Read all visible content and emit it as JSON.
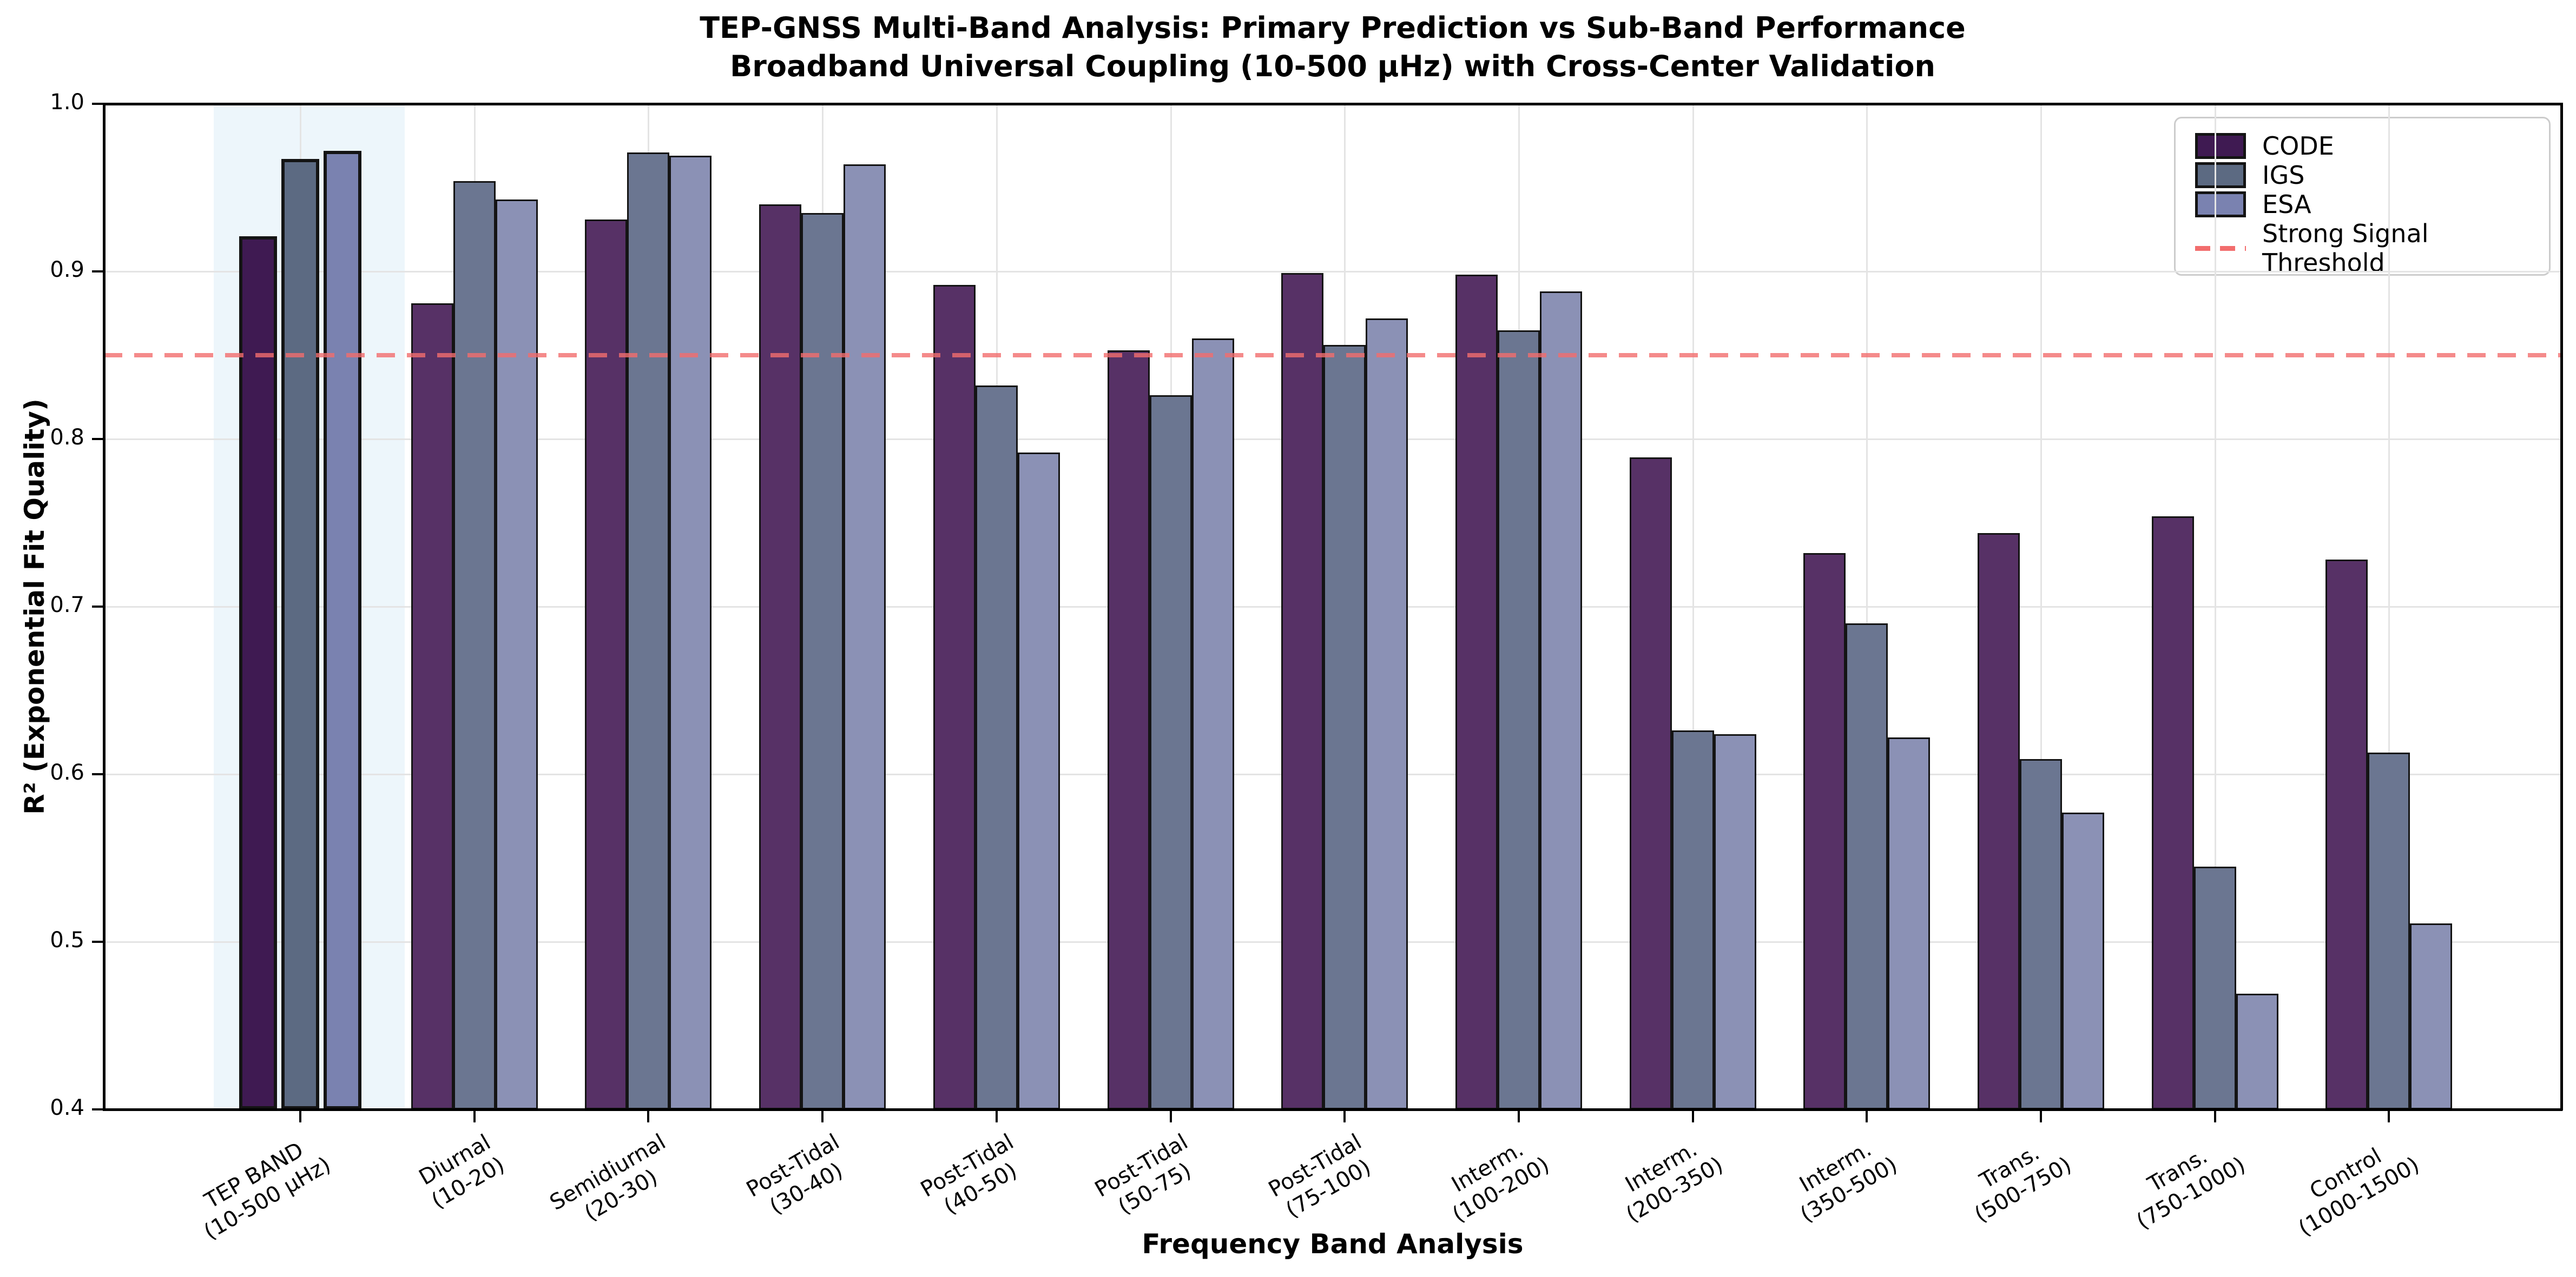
{
  "chart_data": {
    "type": "bar",
    "title": "TEP-GNSS Multi-Band Analysis: Primary Prediction vs Sub-Band Performance",
    "subtitle": "Broadband Universal Coupling (10-500 μHz) with Cross-Center Validation",
    "xlabel": "Frequency Band Analysis",
    "ylabel": "R² (Exponential Fit Quality)",
    "ylim": [
      0.4,
      1.0
    ],
    "yticks": [
      0.4,
      0.5,
      0.6,
      0.7,
      0.8,
      0.9,
      1.0
    ],
    "ytick_labels": [
      "0.4",
      "0.5",
      "0.6",
      "0.7",
      "0.8",
      "0.9",
      "1.0"
    ],
    "grid": true,
    "legend_position": "upper right",
    "categories": [
      [
        "TEP BAND",
        "(10-500 μHz)"
      ],
      [
        "Diurnal",
        "(10-20)"
      ],
      [
        "Semidiurnal",
        "(20-30)"
      ],
      [
        "Post-Tidal",
        "(30-40)"
      ],
      [
        "Post-Tidal",
        "(40-50)"
      ],
      [
        "Post-Tidal",
        "(50-75)"
      ],
      [
        "Post-Tidal",
        "(75-100)"
      ],
      [
        "Interm.",
        "(100-200)"
      ],
      [
        "Interm.",
        "(200-350)"
      ],
      [
        "Interm.",
        "(350-500)"
      ],
      [
        "Trans.",
        "(500-750)"
      ],
      [
        "Trans.",
        "(750-1000)"
      ],
      [
        "Control",
        "(1000-1500)"
      ]
    ],
    "series": [
      {
        "name": "CODE",
        "color": "#573166",
        "highlight_color": "#3f1a52",
        "values": [
          0.921,
          0.881,
          0.931,
          0.94,
          0.892,
          0.853,
          0.899,
          0.898,
          0.789,
          0.732,
          0.744,
          0.754,
          0.728
        ]
      },
      {
        "name": "IGS",
        "color": "#6b7691",
        "highlight_color": "#5c6a82",
        "values": [
          0.967,
          0.954,
          0.971,
          0.935,
          0.832,
          0.826,
          0.856,
          0.865,
          0.626,
          0.69,
          0.609,
          0.545,
          0.613
        ]
      },
      {
        "name": "ESA",
        "color": "#8b91b5",
        "highlight_color": "#7a82b0",
        "values": [
          0.972,
          0.943,
          0.969,
          0.964,
          0.792,
          0.86,
          0.872,
          0.888,
          0.624,
          0.622,
          0.577,
          0.469,
          0.511
        ]
      }
    ],
    "threshold": {
      "label": "Strong Signal Threshold",
      "value": 0.85,
      "color": "#f26d6d"
    },
    "highlight_band": {
      "category_index": 0,
      "color": "rgba(173,216,235,0.22)"
    },
    "bar_edge_color": "#141414"
  }
}
